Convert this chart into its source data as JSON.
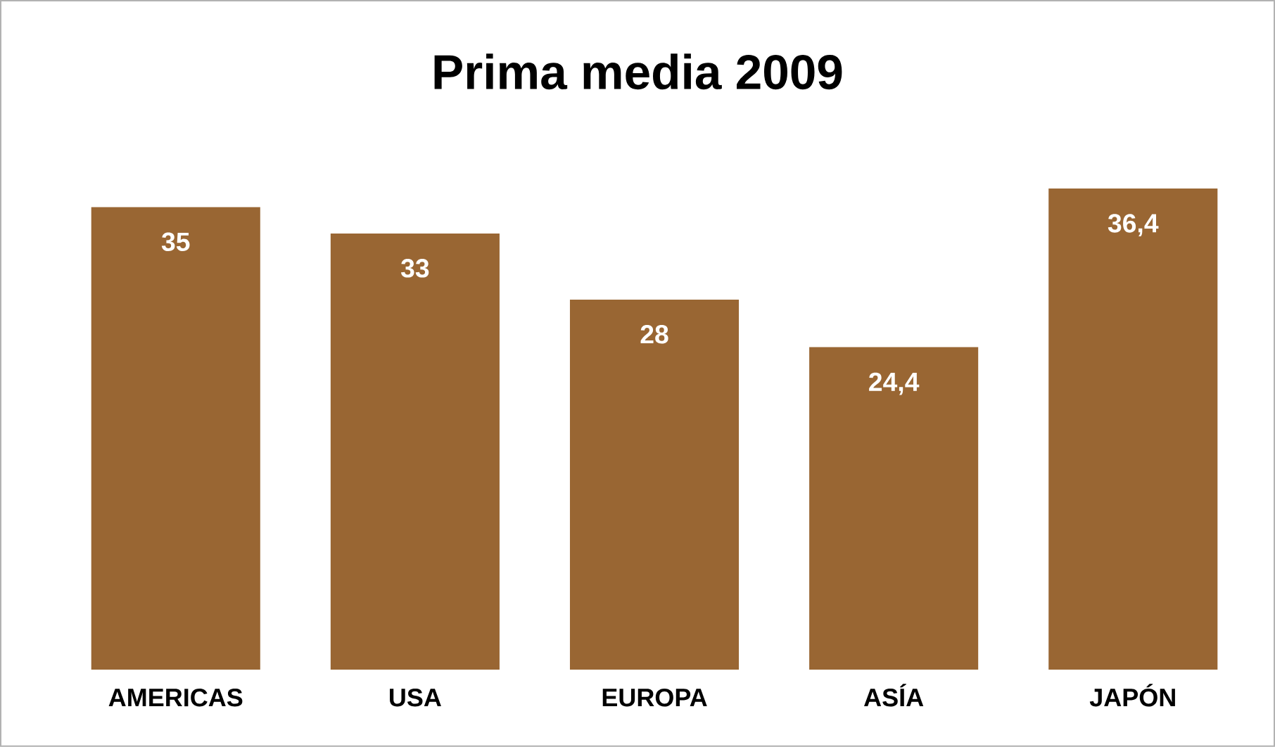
{
  "chart_data": {
    "type": "bar",
    "title": "Prima media 2009",
    "categories": [
      "AMERICAS",
      "USA",
      "EUROPA",
      "ASÍA",
      "JAPÓN"
    ],
    "values": [
      35,
      33,
      28,
      24.4,
      36.4
    ],
    "value_labels": [
      "35",
      "33",
      "28",
      "24,4",
      "36,4"
    ],
    "color": "#996633"
  }
}
